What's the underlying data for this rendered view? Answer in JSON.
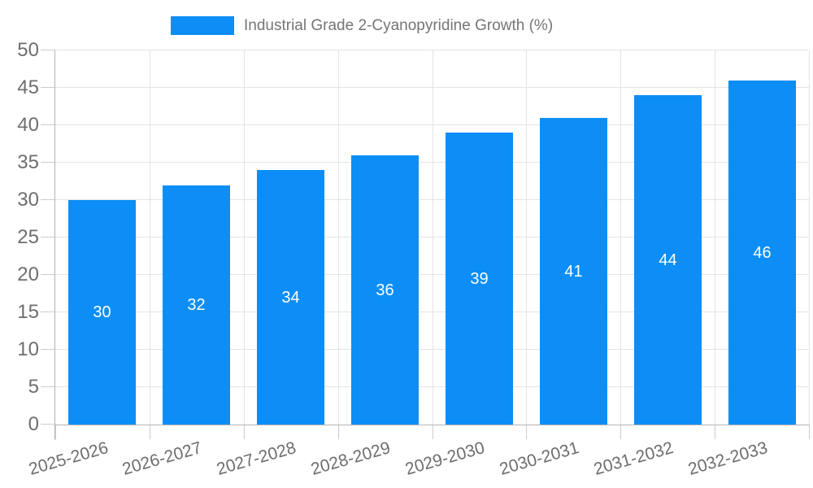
{
  "legend": {
    "label": "Industrial Grade 2-Cyanopyridine Growth (%)"
  },
  "chart_data": {
    "type": "bar",
    "title": "Industrial Grade 2-Cyanopyridine Growth (%)",
    "categories": [
      "2025-2026",
      "2026-2027",
      "2027-2028",
      "2028-2029",
      "2029-2030",
      "2030-2031",
      "2031-2032",
      "2032-2033"
    ],
    "values": [
      30,
      32,
      34,
      36,
      39,
      41,
      44,
      46
    ],
    "value_labels": [
      "30",
      "32",
      "34",
      "36",
      "39",
      "41",
      "44",
      "46"
    ],
    "xlabel": "",
    "ylabel": "",
    "ylim": [
      0,
      50
    ],
    "yticks": [
      0,
      5,
      10,
      15,
      20,
      25,
      30,
      35,
      40,
      45,
      50
    ],
    "grid": true,
    "legend_position": "top",
    "x_label_rotation_deg": -16,
    "colors": {
      "bar": "#0C8EF6",
      "value_label": "#FFFFFF",
      "axis_label": "#6E6E6E",
      "title": "#757575",
      "gridline": "#E4E4E4",
      "tick": "#CDCDCD",
      "axis_line": "#B4B4B4",
      "background": "#FFFFFF"
    }
  }
}
